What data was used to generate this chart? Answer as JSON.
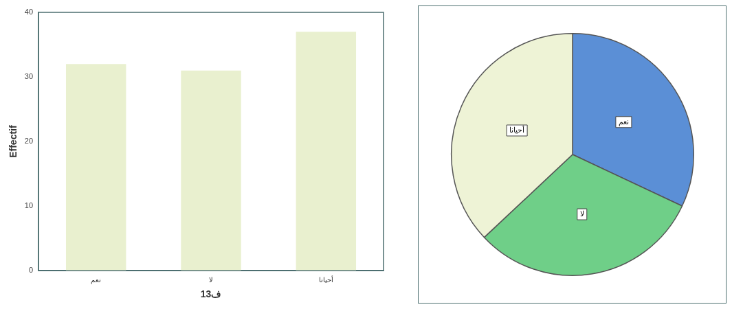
{
  "chart_data": [
    {
      "type": "bar",
      "categories": [
        "نعم",
        "لا",
        "أحيانا"
      ],
      "values": [
        32,
        31,
        37
      ],
      "color": "#e9f0cf",
      "xlabel": "ف13",
      "ylabel": "Effectif",
      "ylim": [
        0,
        40
      ],
      "yticks": [
        0,
        10,
        20,
        30,
        40
      ],
      "grid": false,
      "legend": false
    },
    {
      "type": "pie",
      "categories": [
        "نعم",
        "لا",
        "أحيانا"
      ],
      "values": [
        32,
        31,
        37
      ],
      "colors": [
        "#5b8fd6",
        "#6fcf88",
        "#eef3d6"
      ],
      "legend": false
    }
  ]
}
